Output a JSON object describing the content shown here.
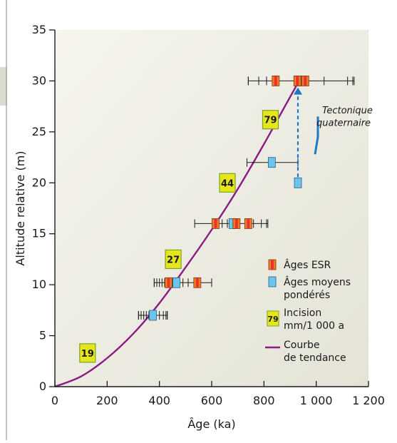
{
  "chart_data": {
    "type": "scatter",
    "title": "",
    "xlabel": "Âge (ka)",
    "ylabel": "Altitude relative (m)",
    "xlim": [
      0,
      1200
    ],
    "ylim": [
      0,
      35
    ],
    "x_ticks": [
      0,
      200,
      400,
      600,
      800,
      1000,
      1200
    ],
    "x_tick_labels": [
      "0",
      "200",
      "400",
      "600",
      "800",
      "1 000",
      "1 200"
    ],
    "y_ticks": [
      0,
      5,
      10,
      15,
      20,
      25,
      30,
      35
    ],
    "y_tick_labels": [
      "0",
      "5",
      "10",
      "15",
      "20",
      "25",
      "30",
      "35"
    ],
    "grid": false,
    "colors": {
      "background": "#ecebdf",
      "esr": "#f47c21",
      "esr_center": "#e8322c",
      "weighted": "#6cc5ee",
      "trend": "#8b1a82",
      "incision_fill": "#e6e61f",
      "incision_border": "#7aa51d",
      "tectonic": "#1e78c4"
    },
    "series": [
      {
        "name": "Âges ESR",
        "points": [
          {
            "x": 845,
            "y": 30
          },
          {
            "x": 928,
            "y": 30
          },
          {
            "x": 958,
            "y": 30
          },
          {
            "x": 615,
            "y": 16
          },
          {
            "x": 695,
            "y": 16
          },
          {
            "x": 740,
            "y": 16
          },
          {
            "x": 435,
            "y": 10.2
          },
          {
            "x": 545,
            "y": 10.2
          }
        ]
      },
      {
        "name": "Âges moyens pondérés",
        "points": [
          {
            "x": 930,
            "y": 30,
            "err": [
              740,
              1145
            ]
          },
          {
            "x": 830,
            "y": 22,
            "err": [
              735,
              930
            ]
          },
          {
            "x": 930,
            "y": 20
          },
          {
            "x": 680,
            "y": 16,
            "err": [
              535,
              815
            ]
          },
          {
            "x": 465,
            "y": 10.2,
            "err": [
              380,
              600
            ]
          },
          {
            "x": 375,
            "y": 7,
            "err": [
              320,
              430
            ]
          }
        ]
      }
    ],
    "individual_ages": [
      {
        "y": 30,
        "x": [
          740,
          780,
          810,
          945,
          1030,
          1120,
          1140
        ]
      },
      {
        "y": 16,
        "x": [
          640,
          660,
          700,
          760,
          790,
          810
        ]
      },
      {
        "y": 10.2,
        "x": [
          380,
          390,
          400,
          410,
          420,
          450,
          470,
          490,
          510,
          600
        ]
      },
      {
        "y": 7,
        "x": [
          320,
          330,
          340,
          350,
          360,
          400,
          415,
          425,
          430
        ]
      }
    ],
    "trend": {
      "name": "Courbe de tendance",
      "points": [
        [
          0,
          0
        ],
        [
          100,
          1
        ],
        [
          200,
          2.8
        ],
        [
          300,
          5.2
        ],
        [
          400,
          8.2
        ],
        [
          500,
          11.7
        ],
        [
          600,
          15.4
        ],
        [
          700,
          19.4
        ],
        [
          800,
          23.8
        ],
        [
          880,
          27.5
        ],
        [
          930,
          29.8
        ]
      ]
    },
    "incision_labels": [
      {
        "text": "19",
        "x": 125,
        "y": 3.3
      },
      {
        "text": "27",
        "x": 453,
        "y": 12.5
      },
      {
        "text": "44",
        "x": 660,
        "y": 20
      },
      {
        "text": "79",
        "x": 825,
        "y": 26.2
      }
    ],
    "annotation": {
      "line1": "Tectonique",
      "line2": "quaternaire",
      "x": 930,
      "y_from": 20,
      "y_to": 29.5
    },
    "legend": {
      "position": "right",
      "esr": "Âges ESR",
      "weighted_1": "Âges moyens",
      "weighted_2": "pondérés",
      "incision_sample": "79",
      "incision_1": "Incision",
      "incision_2": "mm/1 000 a",
      "trend_1": "Courbe",
      "trend_2": "de tendance"
    }
  }
}
